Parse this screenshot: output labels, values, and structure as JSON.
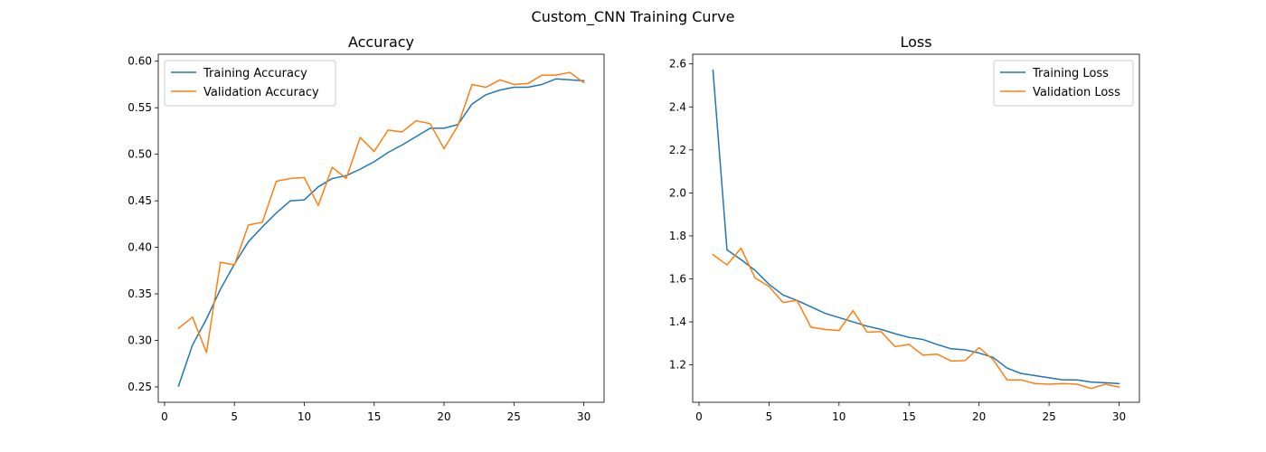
{
  "figure": {
    "title": "Custom_CNN Training Curve"
  },
  "colors": {
    "training": "#1f77b4",
    "validation": "#ff7f0e"
  },
  "chart_data": [
    {
      "type": "line",
      "title": "Accuracy",
      "xlabel": "",
      "ylabel": "",
      "xlim": [
        -0.45,
        31.45
      ],
      "ylim": [
        0.2335,
        0.6075
      ],
      "xticks": [
        0,
        5,
        10,
        15,
        20,
        25,
        30
      ],
      "yticks": [
        0.25,
        0.3,
        0.35,
        0.4,
        0.45,
        0.5,
        0.55,
        0.6
      ],
      "ytick_labels": [
        "0.25",
        "0.30",
        "0.35",
        "0.40",
        "0.45",
        "0.50",
        "0.55",
        "0.60"
      ],
      "legend_position": "top-left",
      "grid": false,
      "x": [
        1,
        2,
        3,
        4,
        5,
        6,
        7,
        8,
        9,
        10,
        11,
        12,
        13,
        14,
        15,
        16,
        17,
        18,
        19,
        20,
        21,
        22,
        23,
        24,
        25,
        26,
        27,
        28,
        29,
        30
      ],
      "series": [
        {
          "name": "Training Accuracy",
          "color": "#1f77b4",
          "values": [
            0.251,
            0.295,
            0.323,
            0.355,
            0.382,
            0.406,
            0.422,
            0.437,
            0.45,
            0.451,
            0.465,
            0.474,
            0.477,
            0.484,
            0.492,
            0.502,
            0.51,
            0.519,
            0.528,
            0.528,
            0.532,
            0.554,
            0.564,
            0.569,
            0.572,
            0.572,
            0.575,
            0.581,
            0.58,
            0.579
          ]
        },
        {
          "name": "Validation Accuracy",
          "color": "#ff7f0e",
          "values": [
            0.313,
            0.325,
            0.287,
            0.384,
            0.381,
            0.424,
            0.427,
            0.471,
            0.474,
            0.475,
            0.445,
            0.486,
            0.474,
            0.518,
            0.503,
            0.526,
            0.524,
            0.536,
            0.533,
            0.506,
            0.531,
            0.575,
            0.572,
            0.58,
            0.575,
            0.576,
            0.585,
            0.585,
            0.588,
            0.577
          ]
        }
      ]
    },
    {
      "type": "line",
      "title": "Loss",
      "xlabel": "",
      "ylabel": "",
      "xlim": [
        -0.45,
        31.45
      ],
      "ylim": [
        1.026,
        2.645
      ],
      "xticks": [
        0,
        5,
        10,
        15,
        20,
        25,
        30
      ],
      "yticks": [
        1.2,
        1.4,
        1.6,
        1.8,
        2.0,
        2.2,
        2.4,
        2.6
      ],
      "ytick_labels": [
        "1.2",
        "1.4",
        "1.6",
        "1.8",
        "2.0",
        "2.2",
        "2.4",
        "2.6"
      ],
      "legend_position": "top-right",
      "grid": false,
      "x": [
        1,
        2,
        3,
        4,
        5,
        6,
        7,
        8,
        9,
        10,
        11,
        12,
        13,
        14,
        15,
        16,
        17,
        18,
        19,
        20,
        21,
        22,
        23,
        24,
        25,
        26,
        27,
        28,
        29,
        30
      ],
      "series": [
        {
          "name": "Training Loss",
          "color": "#1f77b4",
          "values": [
            2.57,
            1.735,
            1.69,
            1.64,
            1.575,
            1.525,
            1.5,
            1.47,
            1.44,
            1.42,
            1.4,
            1.38,
            1.365,
            1.345,
            1.328,
            1.318,
            1.295,
            1.275,
            1.27,
            1.255,
            1.235,
            1.185,
            1.16,
            1.15,
            1.14,
            1.13,
            1.13,
            1.12,
            1.117,
            1.113
          ]
        },
        {
          "name": "Validation Loss",
          "color": "#ff7f0e",
          "values": [
            1.713,
            1.665,
            1.743,
            1.605,
            1.565,
            1.49,
            1.5,
            1.375,
            1.365,
            1.36,
            1.452,
            1.352,
            1.355,
            1.285,
            1.295,
            1.245,
            1.25,
            1.218,
            1.22,
            1.28,
            1.225,
            1.13,
            1.13,
            1.113,
            1.11,
            1.113,
            1.11,
            1.09,
            1.11,
            1.097
          ]
        }
      ]
    }
  ]
}
